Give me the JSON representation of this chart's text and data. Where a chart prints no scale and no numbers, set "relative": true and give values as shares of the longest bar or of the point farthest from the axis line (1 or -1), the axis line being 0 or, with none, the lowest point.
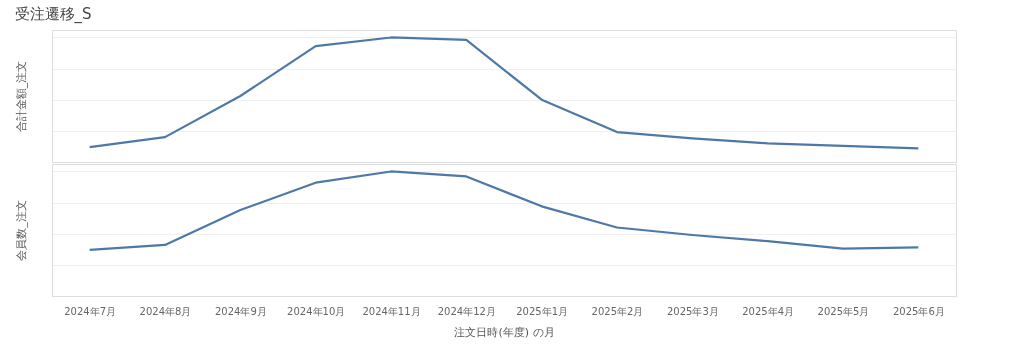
{
  "chart_data": [
    {
      "type": "line",
      "title": "受注遷移_S",
      "ylabel": "合計金額_注文",
      "relative": true,
      "grid": "y",
      "tick_labels": false,
      "legend": false,
      "categories": [
        "2024年7月",
        "2024年8月",
        "2024年9月",
        "2024年10月",
        "2024年11月",
        "2024年12月",
        "2025年1月",
        "2025年2月",
        "2025年3月",
        "2025年4月",
        "2025年5月",
        "2025年6月"
      ],
      "series": [
        {
          "color": "#4e79a7",
          "values": [
            0.12,
            0.2,
            0.53,
            0.93,
            1,
            0.98,
            0.5,
            0.24,
            0.19,
            0.15,
            0.13,
            0.11
          ]
        }
      ]
    },
    {
      "type": "line",
      "ylabel": "会員数_注文",
      "xlabel": "注文日時(年度) の月",
      "relative": true,
      "grid": "y",
      "tick_labels": "x",
      "legend": false,
      "categories": [
        "2024年7月",
        "2024年8月",
        "2024年9月",
        "2024年10月",
        "2024年11月",
        "2024年12月",
        "2025年1月",
        "2025年2月",
        "2025年3月",
        "2025年4月",
        "2025年5月",
        "2025年6月"
      ],
      "series": [
        {
          "color": "#4e79a7",
          "values": [
            0.37,
            0.41,
            0.69,
            0.91,
            1,
            0.96,
            0.72,
            0.55,
            0.49,
            0.44,
            0.38,
            0.39
          ]
        }
      ]
    }
  ]
}
